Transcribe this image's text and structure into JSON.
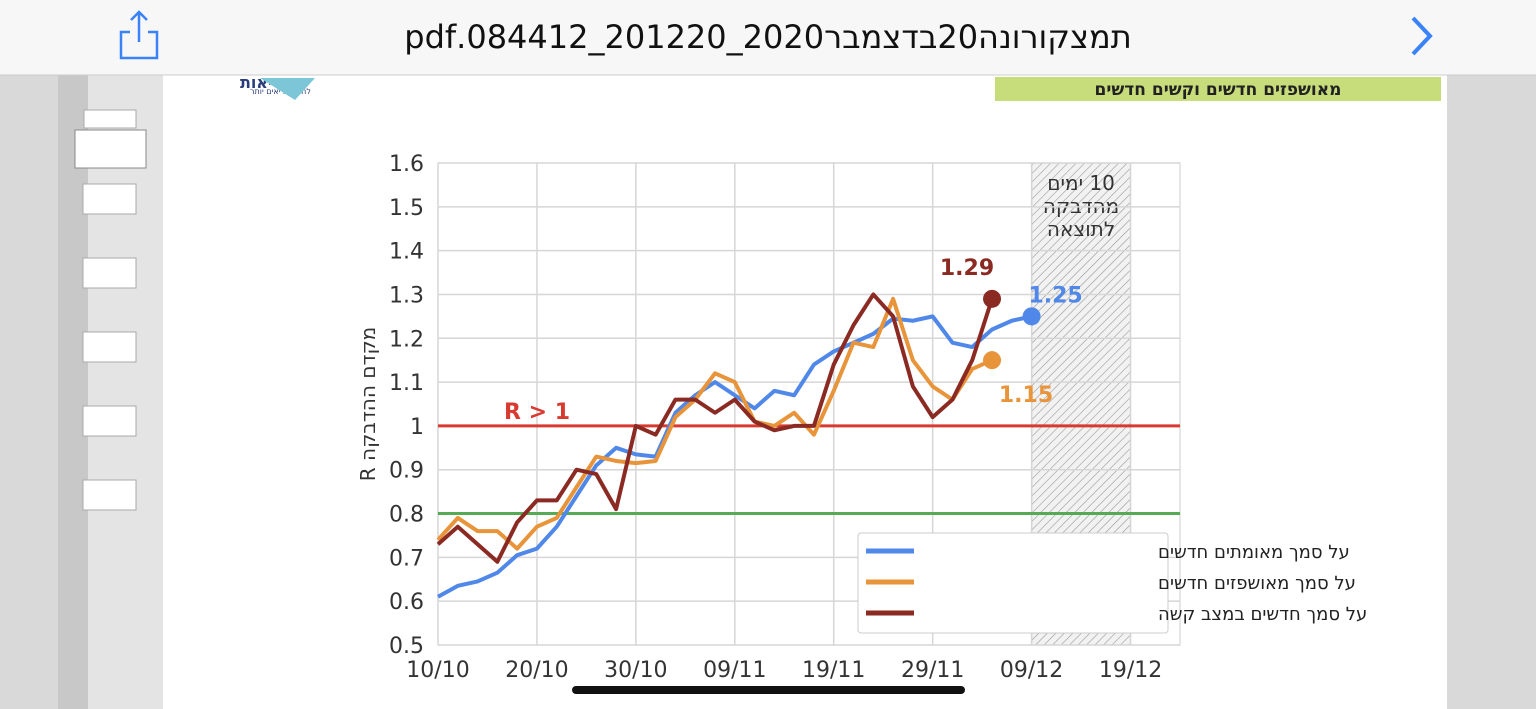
{
  "header": {
    "title": "תמצקורונה20בדצמבר2020_201220_084412.pdf"
  },
  "page": {
    "section_title": "מאושפזים חדשים וקשים חדשים",
    "logo_name": "הבריאות",
    "logo_tagline": "לחיים בריאים יותר"
  },
  "chart_data": {
    "type": "line",
    "ylabel": "מקדם ההדבקה R",
    "x": [
      "10/10",
      "12/10",
      "14/10",
      "16/10",
      "18/10",
      "20/10",
      "22/10",
      "24/10",
      "26/10",
      "28/10",
      "30/10",
      "01/11",
      "03/11",
      "05/11",
      "07/11",
      "09/11",
      "11/11",
      "13/11",
      "15/11",
      "17/11",
      "19/11",
      "21/11",
      "23/11",
      "25/11",
      "27/11",
      "29/11",
      "01/12",
      "03/12",
      "05/12",
      "07/12",
      "09/12"
    ],
    "xlim": [
      "10/10",
      "24/12"
    ],
    "xticks": [
      "10/10",
      "20/10",
      "30/10",
      "09/11",
      "19/11",
      "29/11",
      "09/12",
      "19/12"
    ],
    "ylim": [
      0.5,
      1.6
    ],
    "yticks": [
      0.5,
      0.6,
      0.7,
      0.8,
      0.9,
      1.0,
      1.1,
      1.2,
      1.3,
      1.4,
      1.5,
      1.6
    ],
    "grid": true,
    "series": [
      {
        "name": "על סמך מאומתים חדשים",
        "color": "#4f88e8",
        "values": [
          0.61,
          0.635,
          0.645,
          0.665,
          0.705,
          0.72,
          0.77,
          0.84,
          0.91,
          0.95,
          0.935,
          0.93,
          1.03,
          1.07,
          1.1,
          1.07,
          1.04,
          1.08,
          1.07,
          1.14,
          1.17,
          1.19,
          1.21,
          1.245,
          1.24,
          1.25,
          1.19,
          1.18,
          1.22,
          1.24,
          1.25
        ]
      },
      {
        "name": "על סמך מאושפזים חדשים",
        "color": "#e8943a",
        "values": [
          0.74,
          0.79,
          0.76,
          0.76,
          0.72,
          0.77,
          0.79,
          0.86,
          0.93,
          0.92,
          0.915,
          0.92,
          1.02,
          1.06,
          1.12,
          1.1,
          1.01,
          1.0,
          1.03,
          0.98,
          1.08,
          1.19,
          1.18,
          1.29,
          1.15,
          1.09,
          1.06,
          1.13,
          1.15,
          null,
          null
        ]
      },
      {
        "name": "על סמך חדשים במצב קשה",
        "color": "#8b2a22",
        "values": [
          0.73,
          0.77,
          0.73,
          0.69,
          0.78,
          0.83,
          0.83,
          0.9,
          0.89,
          0.81,
          1.0,
          0.98,
          1.06,
          1.06,
          1.03,
          1.06,
          1.01,
          0.99,
          1.0,
          1.0,
          1.14,
          1.23,
          1.3,
          1.25,
          1.09,
          1.02,
          1.06,
          1.15,
          1.29,
          null,
          null
        ]
      }
    ],
    "reference_lines": [
      {
        "value": 1.0,
        "color": "#d93a30",
        "label": "R > 1"
      },
      {
        "value": 0.8,
        "color": "#55aa55"
      }
    ],
    "shaded_region": {
      "x": [
        "09/12",
        "19/12"
      ],
      "label": [
        "10 ימים",
        "מהדבקה",
        "לתוצאה"
      ]
    },
    "legend": "lower right"
  }
}
